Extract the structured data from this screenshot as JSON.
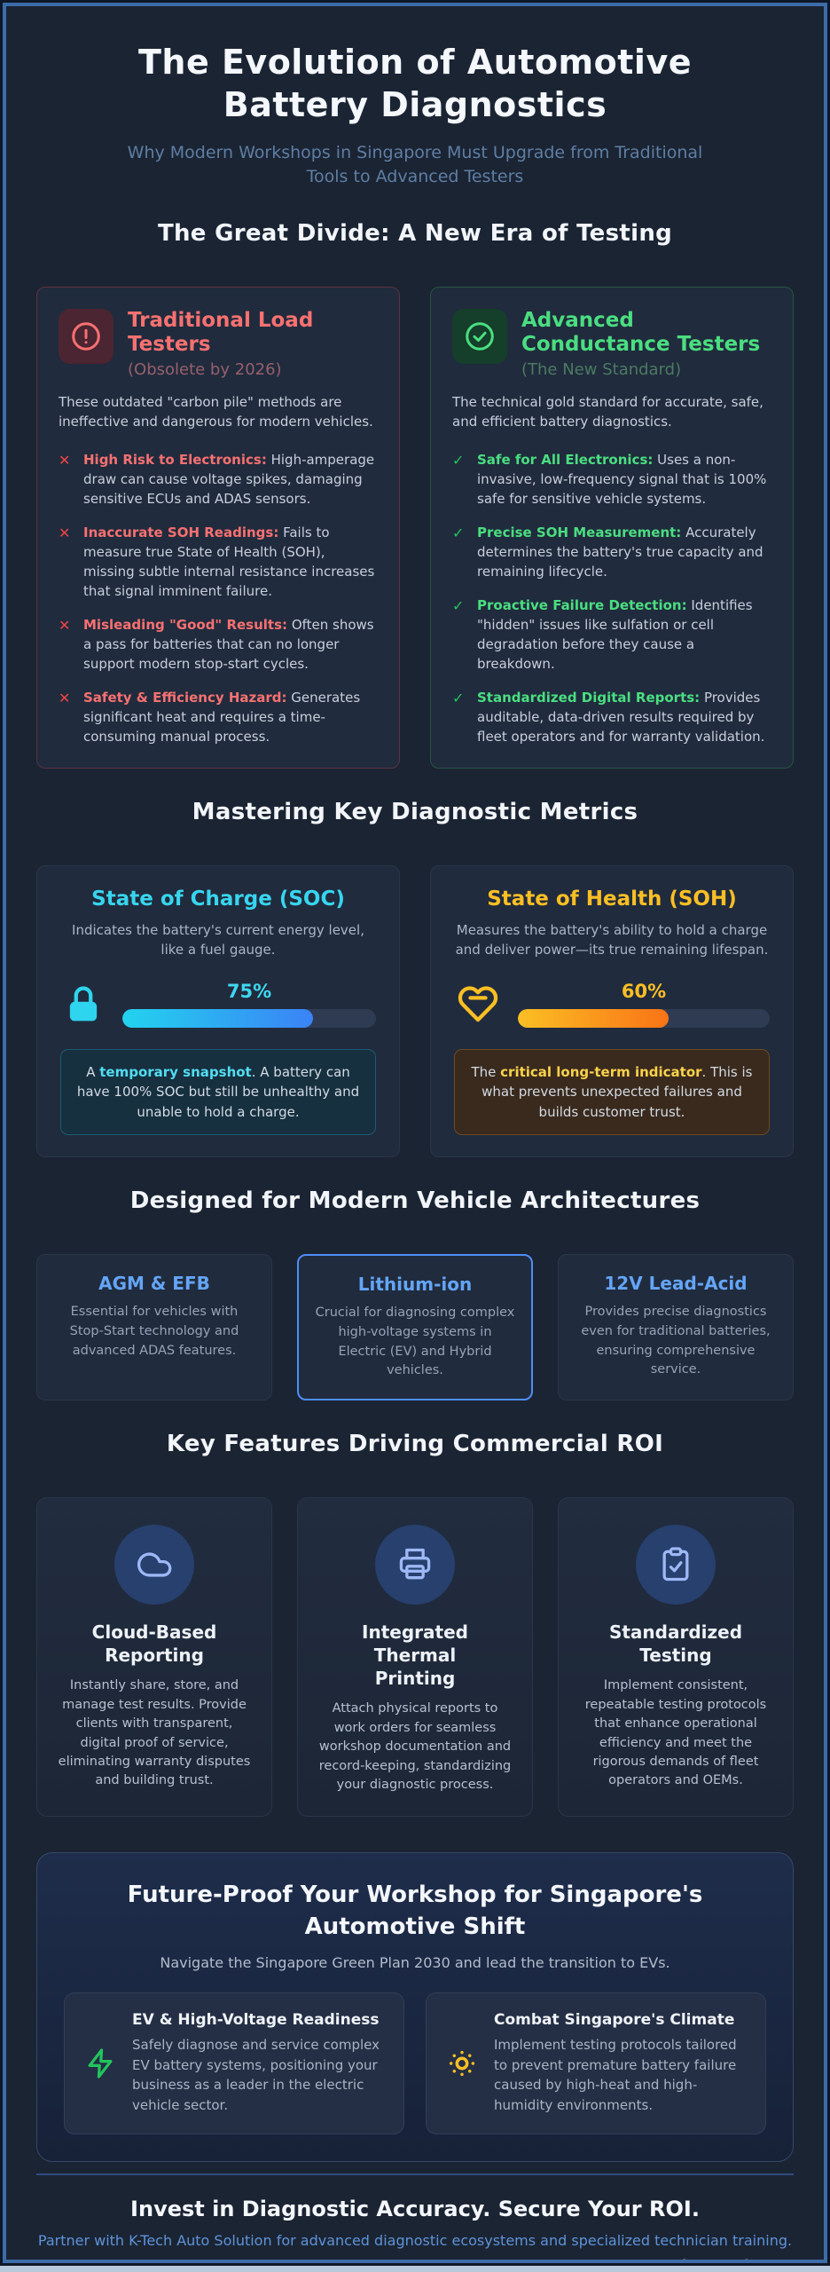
{
  "header": {
    "title": "The Evolution of Automotive Battery Diagnostics",
    "subtitle": "Why Modern Workshops in Singapore Must Upgrade from Traditional Tools to Advanced Testers"
  },
  "divide": {
    "heading": "The Great Divide: A New Era of Testing",
    "left": {
      "icon": "alert-circle-icon",
      "title": "Traditional Load Testers",
      "tag": "(Obsolete by 2026)",
      "intro": "These outdated \"carbon pile\" methods are ineffective and dangerous for modern vehicles.",
      "bullets": [
        {
          "label": "High Risk to Electronics:",
          "text": " High-amperage draw can cause voltage spikes, damaging sensitive ECUs and ADAS sensors."
        },
        {
          "label": "Inaccurate SOH Readings:",
          "text": " Fails to measure true State of Health (SOH), missing subtle internal resistance increases that signal imminent failure."
        },
        {
          "label": "Misleading \"Good\" Results:",
          "text": " Often shows a pass for batteries that can no longer support modern stop-start cycles."
        },
        {
          "label": "Safety & Efficiency Hazard:",
          "text": " Generates significant heat and requires a time-consuming manual process."
        }
      ]
    },
    "right": {
      "icon": "check-circle-icon",
      "title": "Advanced Conductance Testers",
      "tag": "(The New Standard)",
      "intro": "The technical gold standard for accurate, safe, and efficient battery diagnostics.",
      "bullets": [
        {
          "label": "Safe for All Electronics:",
          "text": " Uses a non-invasive, low-frequency signal that is 100% safe for sensitive vehicle systems."
        },
        {
          "label": "Precise SOH Measurement:",
          "text": " Accurately determines the battery's true capacity and remaining lifecycle."
        },
        {
          "label": "Proactive Failure Detection:",
          "text": " Identifies \"hidden\" issues like sulfation or cell degradation before they cause a breakdown."
        },
        {
          "label": "Standardized Digital Reports:",
          "text": " Provides auditable, data-driven results required by fleet operators and for warranty validation."
        }
      ]
    }
  },
  "metrics": {
    "heading": "Mastering Key Diagnostic Metrics",
    "soc": {
      "icon": "lock-icon",
      "title": "State of Charge (SOC)",
      "desc": "Indicates the battery's current energy level, like a fuel gauge.",
      "percent_label": "75%",
      "percent_value": 75,
      "note_prefix": "A ",
      "note_highlight": "temporary snapshot",
      "note_suffix": ". A battery can have 100% SOC but still be unhealthy and unable to hold a charge."
    },
    "soh": {
      "icon": "heart-icon",
      "title": "State of Health (SOH)",
      "desc": "Measures the battery's ability to hold a charge and deliver power—its true remaining lifespan.",
      "percent_label": "60%",
      "percent_value": 60,
      "note_prefix": "The ",
      "note_highlight": "critical long-term indicator",
      "note_suffix": ". This is what prevents unexpected failures and builds customer trust."
    }
  },
  "architectures": {
    "heading": "Designed for Modern Vehicle Architectures",
    "cards": [
      {
        "title": "AGM & EFB",
        "body": "Essential for vehicles with Stop-Start technology and advanced ADAS features.",
        "highlighted": false
      },
      {
        "title": "Lithium-ion",
        "body": "Crucial for diagnosing complex high-voltage systems in Electric (EV) and Hybrid vehicles.",
        "highlighted": true
      },
      {
        "title": "12V Lead-Acid",
        "body": "Provides precise diagnostics even for traditional batteries, ensuring comprehensive service.",
        "highlighted": false
      }
    ]
  },
  "features": {
    "heading": "Key Features Driving Commercial ROI",
    "cards": [
      {
        "icon": "cloud-icon",
        "title": "Cloud-Based Reporting",
        "body": "Instantly share, store, and manage test results. Provide clients with transparent, digital proof of service, eliminating warranty disputes and building trust."
      },
      {
        "icon": "printer-icon",
        "title": "Integrated Thermal Printing",
        "body": "Attach physical reports to work orders for seamless workshop documentation and record-keeping, standardizing your diagnostic process."
      },
      {
        "icon": "clipboard-check-icon",
        "title": "Standardized Testing",
        "body": "Implement consistent, repeatable testing protocols that enhance operational efficiency and meet the rigorous demands of fleet operators and OEMs."
      }
    ]
  },
  "future": {
    "heading": "Future-Proof Your Workshop for Singapore's Automotive Shift",
    "subtitle": "Navigate the Singapore Green Plan 2030 and lead the transition to EVs.",
    "cards": [
      {
        "icon": "zap-icon",
        "title": "EV & High-Voltage Readiness",
        "body": "Safely diagnose and service complex EV battery systems, positioning your business as a leader in the electric vehicle sector."
      },
      {
        "icon": "sun-icon",
        "title": "Combat Singapore's Climate",
        "body": "Implement testing protocols tailored to prevent premature battery failure caused by high-heat and high-humidity environments."
      }
    ]
  },
  "footer": {
    "headline": "Invest in Diagnostic Accuracy. Secure Your ROI.",
    "partner_line": "Partner with K-Tech Auto Solution for advanced diagnostic ecosystems and specialized technician training.",
    "brand": "k-tech.sg"
  },
  "colors": {
    "page_bg": "#1b2433",
    "frame_border": "#3d6da8",
    "card_bg": "#202b3d",
    "bad_accent": "#f87171",
    "good_accent": "#4ade80",
    "soc_accent": "#22d3ee",
    "soc_fill_end": "#3b82f6",
    "soh_accent": "#fbbf24",
    "soh_fill_end": "#f97316",
    "arch_accent": "#64a5f6",
    "highlight_border": "#4f8ef7",
    "partner_text": "#5e93d8"
  }
}
